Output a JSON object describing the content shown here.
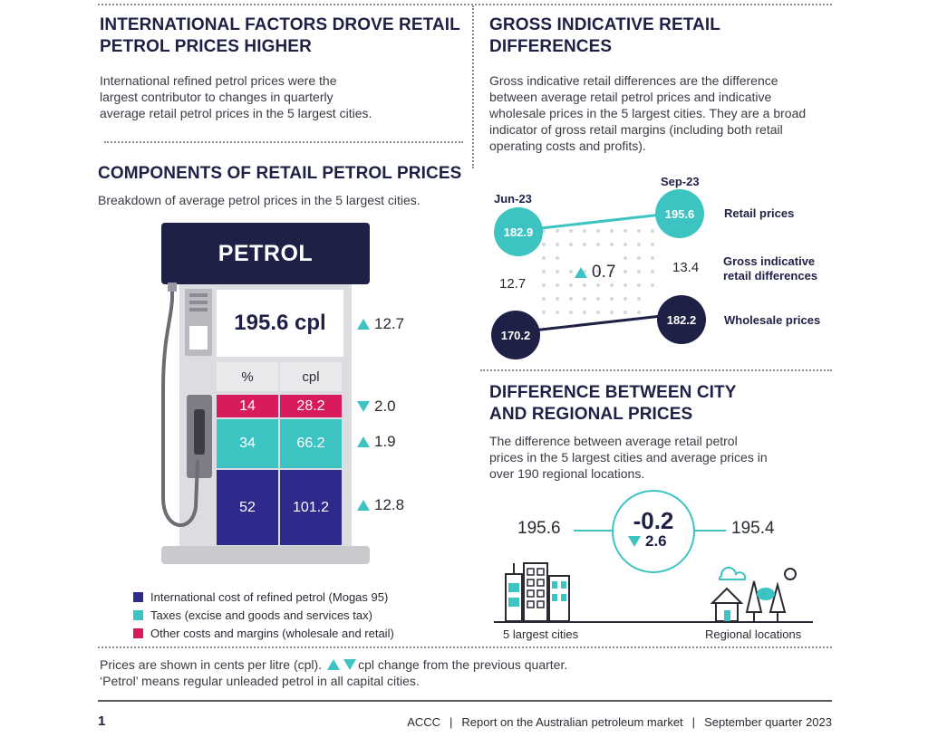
{
  "left_top": {
    "title_line1": "INTERNATIONAL FACTORS DROVE RETAIL",
    "title_line2": "PETROL PRICES HIGHER",
    "body_line1": "International refined petrol prices were the",
    "body_line2": "largest contributor to changes in quarterly",
    "body_line3": "average retail petrol prices in the 5 largest cities."
  },
  "components": {
    "title": "COMPONENTS OF RETAIL PETROL PRICES",
    "subtitle": "Breakdown of average petrol prices in the 5 largest cities.",
    "pump_sign": "PETROL",
    "total": "195.6 cpl",
    "total_change": "12.7",
    "col_pct": "%",
    "col_cpl": "cpl",
    "rows": [
      {
        "pct": "14",
        "cpl": "28.2",
        "change": "2.0",
        "dir": "down",
        "color": "#d81b5c"
      },
      {
        "pct": "34",
        "cpl": "66.2",
        "change": "1.9",
        "dir": "up",
        "color": "#3ec3c3"
      },
      {
        "pct": "52",
        "cpl": "101.2",
        "change": "12.8",
        "dir": "up",
        "color": "#2e2a8c"
      }
    ],
    "legend": [
      {
        "label": "International cost of refined petrol (Mogas 95)",
        "color": "#2e2a8c"
      },
      {
        "label": "Taxes (excise and goods and services tax)",
        "color": "#3ec3c3"
      },
      {
        "label": "Other costs and margins (wholesale and retail)",
        "color": "#d81b5c"
      }
    ]
  },
  "gross": {
    "title_line1": "GROSS INDICATIVE RETAIL",
    "title_line2": "DIFFERENCES",
    "body_line1": "Gross indicative retail differences are the difference",
    "body_line2": "between average retail petrol prices and indicative",
    "body_line3": "wholesale prices in the 5 largest cities. They are a broad",
    "body_line4": "indicator of gross retail margins (including both retail",
    "body_line5": "operating costs and profits).",
    "period_start": "Jun-23",
    "period_end": "Sep-23",
    "retail_start": "182.9",
    "retail_end": "195.6",
    "wholesale_start": "170.2",
    "wholesale_end": "182.2",
    "diff_start": "12.7",
    "diff_end": "13.4",
    "diff_change": "0.7",
    "label_retail": "Retail prices",
    "label_gross_line1": "Gross indicative",
    "label_gross_line2": "retail differences",
    "label_wholesale": "Wholesale prices"
  },
  "city_regional": {
    "title_line1": "DIFFERENCE BETWEEN CITY",
    "title_line2": "AND REGIONAL PRICES",
    "body_line1": "The difference between average retail petrol",
    "body_line2": "prices in the 5 largest cities and average prices in",
    "body_line3": "over 190 regional locations.",
    "city_price": "195.6",
    "regional_price": "195.4",
    "difference": "-0.2",
    "difference_change": "2.6",
    "city_label": "5 largest cities",
    "regional_label": "Regional locations"
  },
  "footnote": {
    "line1_a": "Prices are shown in cents per litre (cpl).",
    "line1_b": "cpl change from the previous quarter.",
    "line2": "‘Petrol’ means regular unleaded petrol in all capital cities."
  },
  "footer": {
    "page_number": "1",
    "org": "ACCC",
    "separator": "|",
    "report": "Report on the Australian petroleum market",
    "period": "September quarter 2023"
  }
}
